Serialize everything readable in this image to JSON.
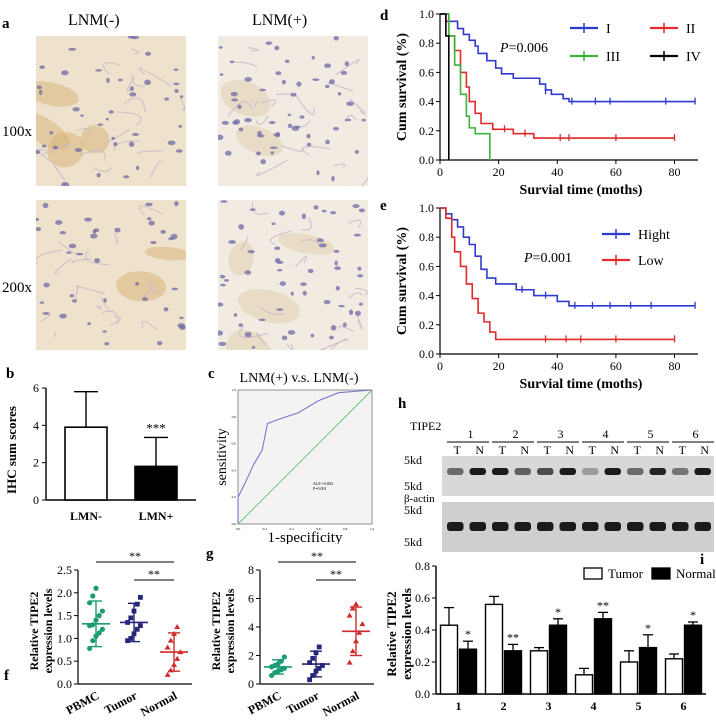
{
  "panels": {
    "a": "a",
    "b": "b",
    "c": "c",
    "d": "d",
    "e": "e",
    "f": "f",
    "g": "g",
    "h": "h",
    "i": "i"
  },
  "panel_a": {
    "col_neg": "LNM(-)",
    "col_pos": "LNM(+)",
    "row_100": "100x",
    "row_200": "200x"
  },
  "colors": {
    "blue": "#2e3bcc",
    "red": "#e12a2a",
    "green": "#3cb43c",
    "black": "#000000",
    "teal": "#1a9c74",
    "navy": "#25257a",
    "crimson": "#d02a2a"
  },
  "chart_data": [
    {
      "id": "d",
      "type": "line",
      "subtype": "kaplan-meier",
      "ylabel": "Cum survival (%)",
      "xlabel": "Survial time (moths)",
      "pvalue": "P=0.006",
      "xlim": [
        0,
        88
      ],
      "ylim": [
        0,
        1.0
      ],
      "xticks": [
        "0",
        "20",
        "40",
        "60",
        "80"
      ],
      "yticks": [
        "0.0",
        "0.2",
        "0.4",
        "0.6",
        "0.8",
        "1.0"
      ],
      "series": [
        {
          "name": "I",
          "color": "blue",
          "steps": [
            [
              0,
              1
            ],
            [
              3,
              1
            ],
            [
              3,
              0.95
            ],
            [
              6,
              0.9
            ],
            [
              8,
              0.86
            ],
            [
              10,
              0.82
            ],
            [
              12,
              0.78
            ],
            [
              13,
              0.73
            ],
            [
              16,
              0.68
            ],
            [
              19,
              0.63
            ],
            [
              21,
              0.59
            ],
            [
              25,
              0.56
            ],
            [
              34,
              0.52
            ],
            [
              36,
              0.48
            ],
            [
              38,
              0.45
            ],
            [
              42,
              0.42
            ],
            [
              44,
              0.4
            ],
            [
              87,
              0.4
            ]
          ],
          "censors": [
            [
              36,
              0.47
            ],
            [
              45,
              0.4
            ],
            [
              53,
              0.4
            ],
            [
              58,
              0.4
            ],
            [
              77,
              0.4
            ],
            [
              87,
              0.4
            ]
          ]
        },
        {
          "name": "II",
          "color": "red",
          "steps": [
            [
              0,
              1
            ],
            [
              2,
              1
            ],
            [
              2,
              0.95
            ],
            [
              3,
              0.85
            ],
            [
              5,
              0.75
            ],
            [
              7,
              0.6
            ],
            [
              9,
              0.5
            ],
            [
              10,
              0.4
            ],
            [
              12,
              0.32
            ],
            [
              14,
              0.25
            ],
            [
              18,
              0.21
            ],
            [
              25,
              0.18
            ],
            [
              32,
              0.15
            ],
            [
              80,
              0.15
            ]
          ],
          "censors": [
            [
              22,
              0.21
            ],
            [
              29,
              0.18
            ],
            [
              41,
              0.15
            ],
            [
              44,
              0.15
            ],
            [
              60,
              0.15
            ],
            [
              80,
              0.15
            ]
          ]
        },
        {
          "name": "III",
          "color": "green",
          "steps": [
            [
              0,
              1
            ],
            [
              3,
              1
            ],
            [
              3,
              0.85
            ],
            [
              5,
              0.65
            ],
            [
              7,
              0.45
            ],
            [
              9,
              0.3
            ],
            [
              10,
              0.22
            ],
            [
              12,
              0.18
            ],
            [
              17,
              0.18
            ],
            [
              17,
              0
            ]
          ],
          "censors": []
        },
        {
          "name": "IV",
          "color": "black",
          "steps": [
            [
              0,
              1
            ],
            [
              1,
              1
            ],
            [
              2,
              0.85
            ],
            [
              3,
              0.0
            ]
          ],
          "censors": []
        }
      ]
    },
    {
      "id": "e",
      "type": "line",
      "subtype": "kaplan-meier",
      "ylabel": "Cum survival (%)",
      "xlabel": "Survial time (moths)",
      "pvalue": "P=0.001",
      "xlim": [
        0,
        88
      ],
      "ylim": [
        0,
        1.0
      ],
      "xticks": [
        "0",
        "20",
        "40",
        "60",
        "80"
      ],
      "yticks": [
        "0.0",
        "0.2",
        "0.4",
        "0.6",
        "0.8",
        "1.0"
      ],
      "series": [
        {
          "name": "Hight",
          "color": "blue",
          "steps": [
            [
              0,
              1
            ],
            [
              2,
              1
            ],
            [
              2,
              0.96
            ],
            [
              4,
              0.92
            ],
            [
              6,
              0.87
            ],
            [
              8,
              0.8
            ],
            [
              10,
              0.75
            ],
            [
              12,
              0.67
            ],
            [
              14,
              0.58
            ],
            [
              16,
              0.52
            ],
            [
              19,
              0.48
            ],
            [
              26,
              0.44
            ],
            [
              32,
              0.4
            ],
            [
              40,
              0.36
            ],
            [
              44,
              0.33
            ],
            [
              87,
              0.33
            ]
          ],
          "censors": [
            [
              28,
              0.44
            ],
            [
              36,
              0.4
            ],
            [
              46,
              0.33
            ],
            [
              52,
              0.33
            ],
            [
              58,
              0.33
            ],
            [
              65,
              0.33
            ],
            [
              72,
              0.33
            ],
            [
              87,
              0.33
            ]
          ]
        },
        {
          "name": "Low",
          "color": "red",
          "steps": [
            [
              0,
              1
            ],
            [
              2,
              0.93
            ],
            [
              4,
              0.8
            ],
            [
              5,
              0.7
            ],
            [
              7,
              0.6
            ],
            [
              9,
              0.48
            ],
            [
              11,
              0.38
            ],
            [
              13,
              0.28
            ],
            [
              15,
              0.22
            ],
            [
              17,
              0.15
            ],
            [
              19,
              0.1
            ],
            [
              80,
              0.1
            ]
          ],
          "censors": [
            [
              36,
              0.1
            ],
            [
              43,
              0.1
            ],
            [
              48,
              0.1
            ],
            [
              60,
              0.1
            ],
            [
              80,
              0.1
            ]
          ]
        }
      ]
    },
    {
      "id": "b",
      "type": "bar",
      "ylabel": "IHC sum scores",
      "categories": [
        "LMN-",
        "LMN+"
      ],
      "values": [
        3.9,
        1.8
      ],
      "errors": [
        1.9,
        1.55
      ],
      "ylim": [
        0,
        6
      ],
      "yticks": [
        "0",
        "2",
        "4",
        "6"
      ],
      "annotation": "***",
      "fills": [
        "#ffffff",
        "#000000"
      ]
    },
    {
      "id": "c",
      "type": "line",
      "subtype": "roc",
      "title": "LNM(+) v.s. LNM(-)",
      "xlabel": "1-specificity",
      "ylabel": "sensitivity",
      "auc": "AUC=0.804",
      "p": "P=0.001",
      "xticks": [
        "0.0",
        "0.2",
        "0.4",
        "0.6",
        "0.8",
        "1.0"
      ],
      "yticks": [
        "0.0",
        "0.2",
        "0.4",
        "0.6",
        "0.8",
        "1.0"
      ],
      "roc": [
        [
          0,
          0
        ],
        [
          0,
          0.2
        ],
        [
          0.05,
          0.3
        ],
        [
          0.12,
          0.45
        ],
        [
          0.18,
          0.55
        ],
        [
          0.2,
          0.65
        ],
        [
          0.22,
          0.75
        ],
        [
          0.3,
          0.78
        ],
        [
          0.45,
          0.83
        ],
        [
          0.6,
          0.92
        ],
        [
          0.75,
          0.98
        ],
        [
          1,
          1
        ]
      ]
    },
    {
      "id": "f",
      "type": "scatter",
      "ylabel": "Relative TIPE2\nexpression levels",
      "categories": [
        "PBMC",
        "Tumor",
        "Normal"
      ],
      "ylim": [
        0,
        2.5
      ],
      "yticks": [
        "0.0",
        "0.5",
        "1.0",
        "1.5",
        "2.0",
        "2.5"
      ],
      "sig": [
        "**",
        "**"
      ],
      "groups": [
        {
          "name": "PBMC",
          "color": "teal",
          "mean": 1.32,
          "sd": 0.5,
          "points": [
            0.78,
            0.95,
            1.05,
            1.12,
            1.2,
            1.28,
            1.3,
            1.4,
            1.5,
            1.6,
            1.78,
            1.93,
            2.1
          ]
        },
        {
          "name": "Tumor",
          "color": "navy",
          "mean": 1.35,
          "sd": 0.42,
          "points": [
            0.95,
            1.0,
            1.1,
            1.2,
            1.28,
            1.35,
            1.45,
            1.6,
            1.75,
            1.9
          ]
        },
        {
          "name": "Normal",
          "color": "crimson",
          "mean": 0.7,
          "sd": 0.42,
          "points": [
            0.2,
            0.3,
            0.42,
            0.55,
            0.7,
            0.8,
            0.95,
            1.1,
            1.25
          ]
        }
      ]
    },
    {
      "id": "g",
      "type": "scatter",
      "ylabel": "Relative TIPE2\nexpression levels",
      "categories": [
        "PBMC",
        "Tumor",
        "Normal"
      ],
      "ylim": [
        0,
        8
      ],
      "yticks": [
        "0",
        "2",
        "4",
        "6",
        "8"
      ],
      "sig": [
        "**",
        "**"
      ],
      "groups": [
        {
          "name": "PBMC",
          "color": "teal",
          "mean": 1.2,
          "sd": 0.5,
          "points": [
            0.6,
            0.8,
            0.9,
            1.0,
            1.1,
            1.2,
            1.3,
            1.4,
            1.6,
            1.9
          ]
        },
        {
          "name": "Tumor",
          "color": "navy",
          "mean": 1.4,
          "sd": 0.9,
          "points": [
            0.3,
            0.6,
            0.9,
            1.1,
            1.3,
            1.5,
            1.8,
            2.2,
            2.6
          ]
        },
        {
          "name": "Normal",
          "color": "crimson",
          "mean": 3.7,
          "sd": 1.7,
          "points": [
            1.5,
            2.3,
            3.0,
            3.6,
            4.2,
            4.8,
            5.3,
            5.6
          ]
        }
      ]
    },
    {
      "id": "i",
      "type": "bar",
      "ylabel": "Relative TIPE2\nexpression levels",
      "categories": [
        "1",
        "2",
        "3",
        "4",
        "5",
        "6"
      ],
      "ylim": [
        0,
        0.8
      ],
      "yticks": [
        "0.0",
        "0.2",
        "0.4",
        "0.6",
        "0.8"
      ],
      "series": [
        {
          "name": "Tumor",
          "fill": "#ffffff",
          "values": [
            0.43,
            0.56,
            0.27,
            0.12,
            0.2,
            0.22
          ],
          "errors": [
            0.11,
            0.05,
            0.02,
            0.04,
            0.07,
            0.03
          ]
        },
        {
          "name": "Normal",
          "fill": "#000000",
          "values": [
            0.28,
            0.27,
            0.43,
            0.47,
            0.29,
            0.43
          ],
          "errors": [
            0.05,
            0.04,
            0.04,
            0.04,
            0.08,
            0.02
          ]
        }
      ],
      "sig": [
        "*",
        "**",
        "*",
        "**",
        "*",
        "*"
      ]
    }
  ],
  "panel_h": {
    "title": "TIPE2",
    "actin": "β-actin",
    "lanes": [
      "1",
      "2",
      "3",
      "4",
      "5",
      "6"
    ],
    "tn": [
      "T",
      "N"
    ],
    "kd": [
      "25kd",
      "15kd",
      "55kd",
      "35kd"
    ],
    "tipe2_intensity": [
      0.55,
      0.95,
      0.95,
      0.6,
      0.7,
      0.95,
      0.3,
      0.95,
      0.55,
      0.9,
      0.5,
      0.95
    ],
    "actin_intensity": [
      0.95,
      0.95,
      0.95,
      0.95,
      0.95,
      0.95,
      0.95,
      0.95,
      0.95,
      0.95,
      0.95,
      0.95
    ]
  }
}
